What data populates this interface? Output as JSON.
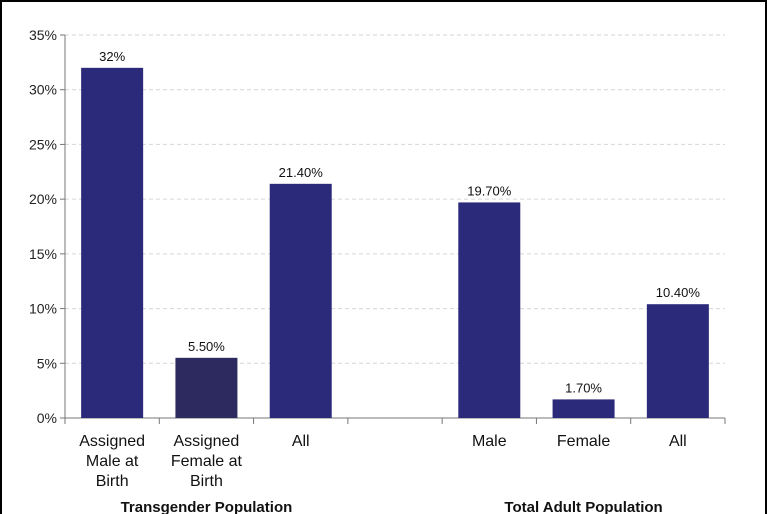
{
  "chart_data": {
    "type": "bar",
    "title": "",
    "xlabel": "",
    "ylabel": "",
    "ylim": [
      0,
      35
    ],
    "yticks": [
      "0%",
      "5%",
      "10%",
      "15%",
      "20%",
      "25%",
      "30%",
      "35%"
    ],
    "grid": true,
    "groups": [
      {
        "label": "Transgender Population",
        "bars": [
          {
            "category": [
              "Assigned",
              "Male at",
              "Birth"
            ],
            "value": 32,
            "label": "32%",
            "color": "#2b2a7a"
          },
          {
            "category": [
              "Assigned",
              "Female at",
              "Birth"
            ],
            "value": 5.5,
            "label": "5.50%",
            "color": "#2c2a5e"
          },
          {
            "category": [
              "All"
            ],
            "value": 21.4,
            "label": "21.40%",
            "color": "#2b2a7a"
          }
        ]
      },
      {
        "label": "Total Adult Population",
        "bars": [
          {
            "category": [
              "Male"
            ],
            "value": 19.7,
            "label": "19.70%",
            "color": "#2b2a7a"
          },
          {
            "category": [
              "Female"
            ],
            "value": 1.7,
            "label": "1.70%",
            "color": "#2b2a7a"
          },
          {
            "category": [
              "All"
            ],
            "value": 10.4,
            "label": "10.40%",
            "color": "#2b2a7a"
          }
        ]
      }
    ]
  }
}
